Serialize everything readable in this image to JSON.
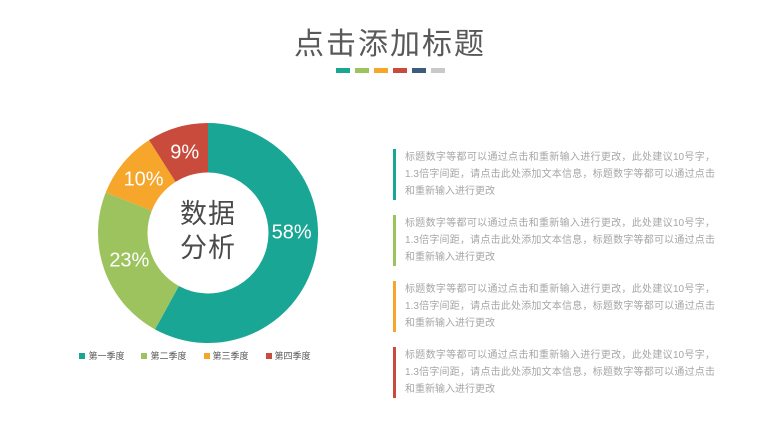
{
  "slide": {
    "title": "点击添加标题",
    "accent_squares": [
      {
        "name": "teal",
        "color": "#19A695"
      },
      {
        "name": "green",
        "color": "#9DC35E"
      },
      {
        "name": "orange",
        "color": "#F5A62B"
      },
      {
        "name": "red",
        "color": "#C94B3C"
      },
      {
        "name": "navy",
        "color": "#3D5B7C"
      },
      {
        "name": "gray",
        "color": "#C9C9C9"
      }
    ]
  },
  "chart_data": {
    "type": "pie",
    "subtype": "donut",
    "title": "数据分析",
    "center_label_lines": [
      "数据",
      "分析"
    ],
    "categories": [
      "第一季度",
      "第二季度",
      "第三季度",
      "第四季度"
    ],
    "values": [
      58,
      23,
      10,
      9
    ],
    "labels": [
      "58%",
      "23%",
      "10%",
      "9%"
    ],
    "colors": [
      "#19A695",
      "#9DC35E",
      "#F5A62B",
      "#C94B3C"
    ],
    "start_angle_deg": 0,
    "direction": "clockwise",
    "inner_radius_ratio": 0.55,
    "label_radius_ratio": 0.76,
    "label_angle_overrides": {
      "0": 90
    },
    "legend_position": "bottom",
    "label_text_color": "#FFFFFF"
  },
  "body_blocks": [
    {
      "name": "q1",
      "accent_color": "#19A695",
      "text": "标题数字等都可以通过点击和重新输入进行更改，此处建议10号字，1.3倍字间距，请点击此处添加文本信息，标题数字等都可以通过点击和重新输入进行更改"
    },
    {
      "name": "q2",
      "accent_color": "#9DC35E",
      "text": "标题数字等都可以通过点击和重新输入进行更改，此处建议10号字，1.3倍字间距，请点击此处添加文本信息，标题数字等都可以通过点击和重新输入进行更改"
    },
    {
      "name": "q3",
      "accent_color": "#F5A62B",
      "text": "标题数字等都可以通过点击和重新输入进行更改，此处建议10号字，1.3倍字间距，请点击此处添加文本信息，标题数字等都可以通过点击和重新输入进行更改"
    },
    {
      "name": "q4",
      "accent_color": "#C94B3C",
      "text": "标题数字等都可以通过点击和重新输入进行更改，此处建议10号字，1.3倍字间距，请点击此处添加文本信息，标题数字等都可以通过点击和重新输入进行更改"
    }
  ]
}
